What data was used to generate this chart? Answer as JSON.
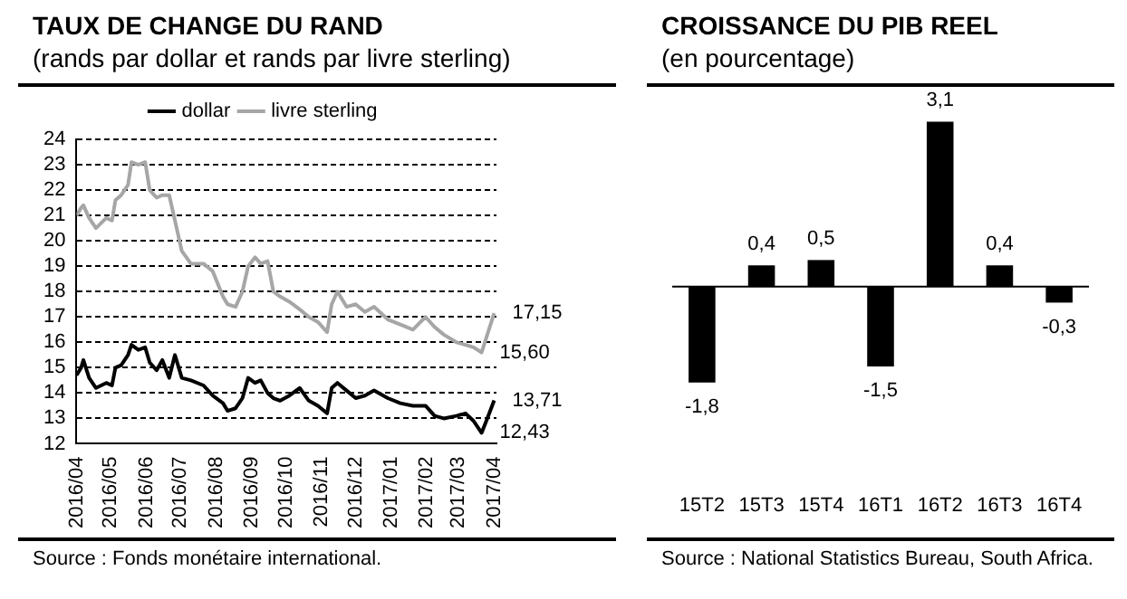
{
  "chart_data": [
    {
      "type": "line",
      "title": "TAUX DE CHANGE DU RAND",
      "subtitle": "(rands par dollar et rands par livre sterling)",
      "x": [
        "2016-04-01",
        "2016-04-05",
        "2016-04-07",
        "2016-04-12",
        "2016-04-18",
        "2016-04-27",
        "2016-05-02",
        "2016-05-05",
        "2016-05-10",
        "2016-05-16",
        "2016-05-19",
        "2016-05-25",
        "2016-05-31",
        "2016-06-04",
        "2016-06-10",
        "2016-06-15",
        "2016-06-21",
        "2016-06-26",
        "2016-07-02",
        "2016-07-10",
        "2016-07-21",
        "2016-07-29",
        "2016-08-07",
        "2016-08-11",
        "2016-08-18",
        "2016-08-24",
        "2016-08-29",
        "2016-09-04",
        "2016-09-09",
        "2016-09-15",
        "2016-09-20",
        "2016-09-26",
        "2016-10-04",
        "2016-10-13",
        "2016-10-21",
        "2016-10-29",
        "2016-11-06",
        "2016-11-10",
        "2016-11-15",
        "2016-11-23",
        "2016-12-01",
        "2016-12-09",
        "2016-12-17",
        "2016-12-29",
        "2017-01-09",
        "2017-01-20",
        "2017-01-31",
        "2017-02-08",
        "2017-02-16",
        "2017-02-27",
        "2017-03-07",
        "2017-03-14",
        "2017-03-21",
        "2017-03-26",
        "2017-04-01"
      ],
      "series": [
        {
          "name": "dollar",
          "color": "#000000",
          "values": [
            14.7,
            15.0,
            15.3,
            14.6,
            14.2,
            14.4,
            14.3,
            15.0,
            15.1,
            15.5,
            15.9,
            15.7,
            15.8,
            15.2,
            14.9,
            15.3,
            14.6,
            15.5,
            14.6,
            14.5,
            14.3,
            13.9,
            13.6,
            13.3,
            13.4,
            13.8,
            14.6,
            14.4,
            14.5,
            14.0,
            13.8,
            13.7,
            13.9,
            14.2,
            13.7,
            13.5,
            13.2,
            14.2,
            14.4,
            14.1,
            13.8,
            13.9,
            14.1,
            13.8,
            13.6,
            13.5,
            13.5,
            13.1,
            13.0,
            13.1,
            13.2,
            12.9,
            12.43,
            13.0,
            13.71
          ]
        },
        {
          "name": "livre sterling",
          "color": "#a6a6a6",
          "values": [
            21.0,
            21.3,
            21.4,
            20.9,
            20.5,
            20.9,
            20.8,
            21.6,
            21.8,
            22.2,
            23.1,
            23.0,
            23.1,
            22.0,
            21.7,
            21.8,
            21.8,
            20.8,
            19.6,
            19.1,
            19.1,
            18.8,
            17.8,
            17.5,
            17.4,
            18.0,
            19.0,
            19.35,
            19.1,
            19.2,
            18.0,
            17.8,
            17.6,
            17.3,
            17.0,
            16.8,
            16.4,
            17.5,
            18.0,
            17.4,
            17.5,
            17.2,
            17.4,
            16.9,
            16.7,
            16.5,
            17.0,
            16.6,
            16.3,
            16.0,
            15.9,
            15.8,
            15.6,
            16.3,
            17.15
          ]
        }
      ],
      "xlim": [
        "2016-04-01",
        "2017-04-03"
      ],
      "xticks": [
        {
          "value": "2016-04-01",
          "label": "2016/04"
        },
        {
          "value": "2016-05-01",
          "label": "2016/05"
        },
        {
          "value": "2016-06-01",
          "label": "2016/06"
        },
        {
          "value": "2016-07-01",
          "label": "2016/07"
        },
        {
          "value": "2016-08-01",
          "label": "2016/08"
        },
        {
          "value": "2016-09-01",
          "label": "2016/09"
        },
        {
          "value": "2016-10-01",
          "label": "2016/10"
        },
        {
          "value": "2016-11-01",
          "label": "2016/11"
        },
        {
          "value": "2016-12-01",
          "label": "2016/12"
        },
        {
          "value": "2017-01-01",
          "label": "2017/01"
        },
        {
          "value": "2017-02-01",
          "label": "2017/02"
        },
        {
          "value": "2017-03-01",
          "label": "2017/03"
        },
        {
          "value": "2017-04-01",
          "label": "2017/04"
        }
      ],
      "ylim": [
        12,
        24
      ],
      "yticks": [
        12,
        13,
        14,
        15,
        16,
        17,
        18,
        19,
        20,
        21,
        22,
        23,
        24
      ],
      "grid": "y",
      "legend": "top",
      "annotations": [
        {
          "text": "17,15",
          "x": "2017-04-01",
          "y": 17.15
        },
        {
          "text": "15,60",
          "x": "2017-03-21",
          "y": 15.6
        },
        {
          "text": "13,71",
          "x": "2017-04-01",
          "y": 13.71
        },
        {
          "text": "12,43",
          "x": "2017-03-21",
          "y": 12.43
        },
        "Source : Fonds monétaire international."
      ]
    },
    {
      "type": "bar",
      "title": "CROISSANCE DU PIB REEL",
      "subtitle": "(en pourcentage)",
      "categories": [
        "15T2",
        "15T3",
        "15T4",
        "16T1",
        "16T2",
        "16T3",
        "16T4"
      ],
      "values": [
        -1.8,
        0.4,
        0.5,
        -1.5,
        3.1,
        0.4,
        -0.3
      ],
      "color": "#000000",
      "data_labels": true,
      "legend": false,
      "value_labels": [
        "-1,8",
        "0,4",
        "0,5",
        "-1,5",
        "3,1",
        "0,4",
        "-0,3"
      ],
      "annotations": [
        "Source : National Statistics Bureau, South Africa."
      ]
    }
  ]
}
